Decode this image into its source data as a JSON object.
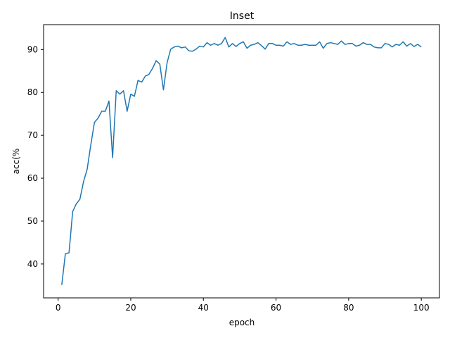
{
  "chart_data": {
    "type": "line",
    "title": "Inset",
    "xlabel": "epoch",
    "ylabel": "acc(%",
    "xlim": [
      -4,
      105
    ],
    "ylim": [
      32.1,
      95.8
    ],
    "xticks": [
      0,
      20,
      40,
      60,
      80,
      100
    ],
    "yticks": [
      40,
      50,
      60,
      70,
      80,
      90
    ],
    "grid": false,
    "line_color": "#1f77b4",
    "series": [
      {
        "x": [
          1,
          2,
          3,
          4,
          5,
          6,
          7,
          8,
          9,
          10,
          11,
          12,
          13,
          14,
          15,
          16,
          17,
          18,
          19,
          20,
          21,
          22,
          23,
          24,
          25,
          26,
          27,
          28,
          29,
          30,
          31,
          32,
          33,
          34,
          35,
          36,
          37,
          38,
          39,
          40,
          41,
          42,
          43,
          44,
          45,
          46,
          47,
          48,
          49,
          50,
          51,
          52,
          53,
          54,
          55,
          56,
          57,
          58,
          59,
          60,
          61,
          62,
          63,
          64,
          65,
          66,
          67,
          68,
          69,
          70,
          71,
          72,
          73,
          74,
          75,
          76,
          77,
          78,
          79,
          80,
          81,
          82,
          83,
          84,
          85,
          86,
          87,
          88,
          89,
          90,
          91,
          92,
          93,
          94,
          95,
          96,
          97,
          98,
          99,
          100
        ],
        "values": [
          35.1,
          42.4,
          42.6,
          52.2,
          54.0,
          55.1,
          59.2,
          62.1,
          67.8,
          73.0,
          74.0,
          75.6,
          75.6,
          78.0,
          64.8,
          80.4,
          79.6,
          80.4,
          75.6,
          79.6,
          79.1,
          82.8,
          82.4,
          83.8,
          84.2,
          85.6,
          87.4,
          86.6,
          80.6,
          86.9,
          90.1,
          90.6,
          90.8,
          90.4,
          90.6,
          89.7,
          89.6,
          90.1,
          90.8,
          90.6,
          91.6,
          91.0,
          91.4,
          91.0,
          91.4,
          92.8,
          90.6,
          91.4,
          90.7,
          91.4,
          91.8,
          90.3,
          91.0,
          91.2,
          91.6,
          90.9,
          90.1,
          91.4,
          91.4,
          91.0,
          91.0,
          90.8,
          91.8,
          91.2,
          91.4,
          91.0,
          91.0,
          91.2,
          91.0,
          91.0,
          91.0,
          91.8,
          90.3,
          91.4,
          91.6,
          91.4,
          91.2,
          92.0,
          91.2,
          91.4,
          91.4,
          90.8,
          91.0,
          91.6,
          91.2,
          91.2,
          90.6,
          90.4,
          90.4,
          91.4,
          91.2,
          90.6,
          91.2,
          91.0,
          91.8,
          90.8,
          91.4,
          90.7,
          91.2,
          90.6
        ]
      }
    ]
  }
}
